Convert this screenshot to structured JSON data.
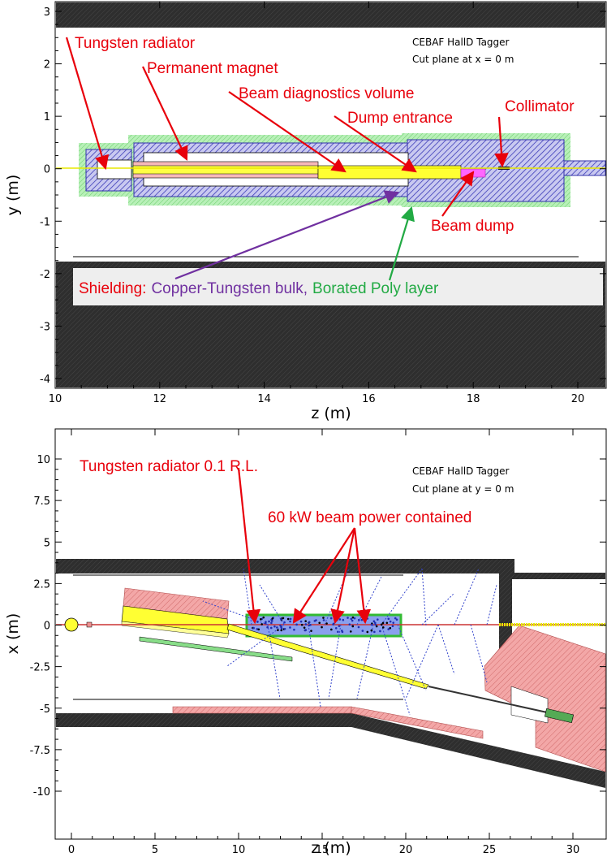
{
  "colors": {
    "annotation_red": "#e8000b",
    "copper_tungsten": "#3333cc",
    "borated_poly": "#33bb33",
    "shield_dark": "#2b2b2b",
    "magnet_fill": "#ffff33",
    "dump_pink": "#ff66ff",
    "wall_pink": "#f0a0a0"
  },
  "top_panel": {
    "title": "CEBAF HallD Tagger",
    "subtitle": "Cut plane at x = 0 m",
    "x_label": "z (m)",
    "y_label": "y (m)",
    "x_ticks": [
      "10",
      "12",
      "14",
      "16",
      "18",
      "20"
    ],
    "y_ticks": [
      "3",
      "2",
      "1",
      "0",
      "-1",
      "-2",
      "-3",
      "-4"
    ],
    "labels": {
      "tungsten_radiator": "Tungsten radiator",
      "permanent_magnet": "Permanent magnet",
      "beam_diagnostics": "Beam diagnostics volume",
      "dump_entrance": "Dump entrance",
      "collimator": "Collimator",
      "beam_dump": "Beam dump"
    },
    "legend": {
      "prefix": "Shielding:",
      "copper": "Copper-Tungsten bulk,",
      "poly": "Borated Poly layer"
    }
  },
  "bottom_panel": {
    "title": "CEBAF HallD Tagger",
    "subtitle": "Cut plane at y = 0 m",
    "x_label": "z (m)",
    "y_label": "x (m)",
    "x_ticks": [
      "0",
      "5",
      "10",
      "15",
      "20",
      "25",
      "30"
    ],
    "y_ticks": [
      "10",
      "7.5",
      "5",
      "2.5",
      "0",
      "-2.5",
      "-5",
      "-7.5",
      "-10"
    ],
    "labels": {
      "radiator": "Tungsten radiator 0.1 R.L.",
      "beam_power": "60 kW beam power contained"
    }
  }
}
